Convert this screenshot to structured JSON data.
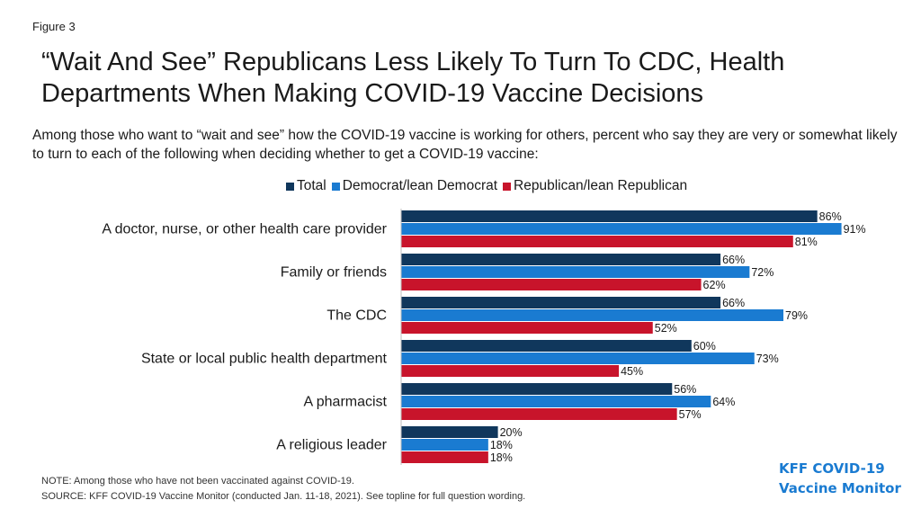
{
  "figure_label": "Figure 3",
  "title": "“Wait And See” Republicans Less Likely To Turn To CDC, Health Departments When Making COVID-19 Vaccine Decisions",
  "subtitle": "Among those who want to “wait and see” how the COVID-19 vaccine is working for others, percent who say they are very or somewhat likely to turn to each of the following when deciding whether to get a COVID-19 vaccine:",
  "colors": {
    "total": "#10375c",
    "democrat": "#1a7bd1",
    "republican": "#c8142b"
  },
  "chart_data": {
    "type": "bar",
    "orientation": "horizontal",
    "title": "“Wait And See” Republicans Less Likely To Turn To CDC, Health Departments When Making COVID-19 Vaccine Decisions",
    "categories": [
      "A doctor, nurse, or other health care provider",
      "Family or friends",
      "The CDC",
      "State or local public health department",
      "A pharmacist",
      "A religious leader"
    ],
    "series": [
      {
        "name": "Total",
        "values": [
          86,
          66,
          66,
          60,
          56,
          20
        ]
      },
      {
        "name": "Democrat/lean Democrat",
        "values": [
          91,
          72,
          79,
          73,
          64,
          18
        ]
      },
      {
        "name": "Republican/lean Republican",
        "values": [
          81,
          62,
          52,
          45,
          57,
          18
        ]
      }
    ],
    "value_suffix": "%",
    "xlim": [
      0,
      100
    ],
    "grid": false,
    "legend_position": "top"
  },
  "note": "NOTE: Among those who have not been vaccinated against COVID-19.",
  "source": "SOURCE: KFF COVID-19 Vaccine Monitor (conducted Jan. 11-18, 2021). See topline for full question wording.",
  "logo": {
    "line1": "KFF COVID-19",
    "line2": "Vaccine Monitor"
  }
}
